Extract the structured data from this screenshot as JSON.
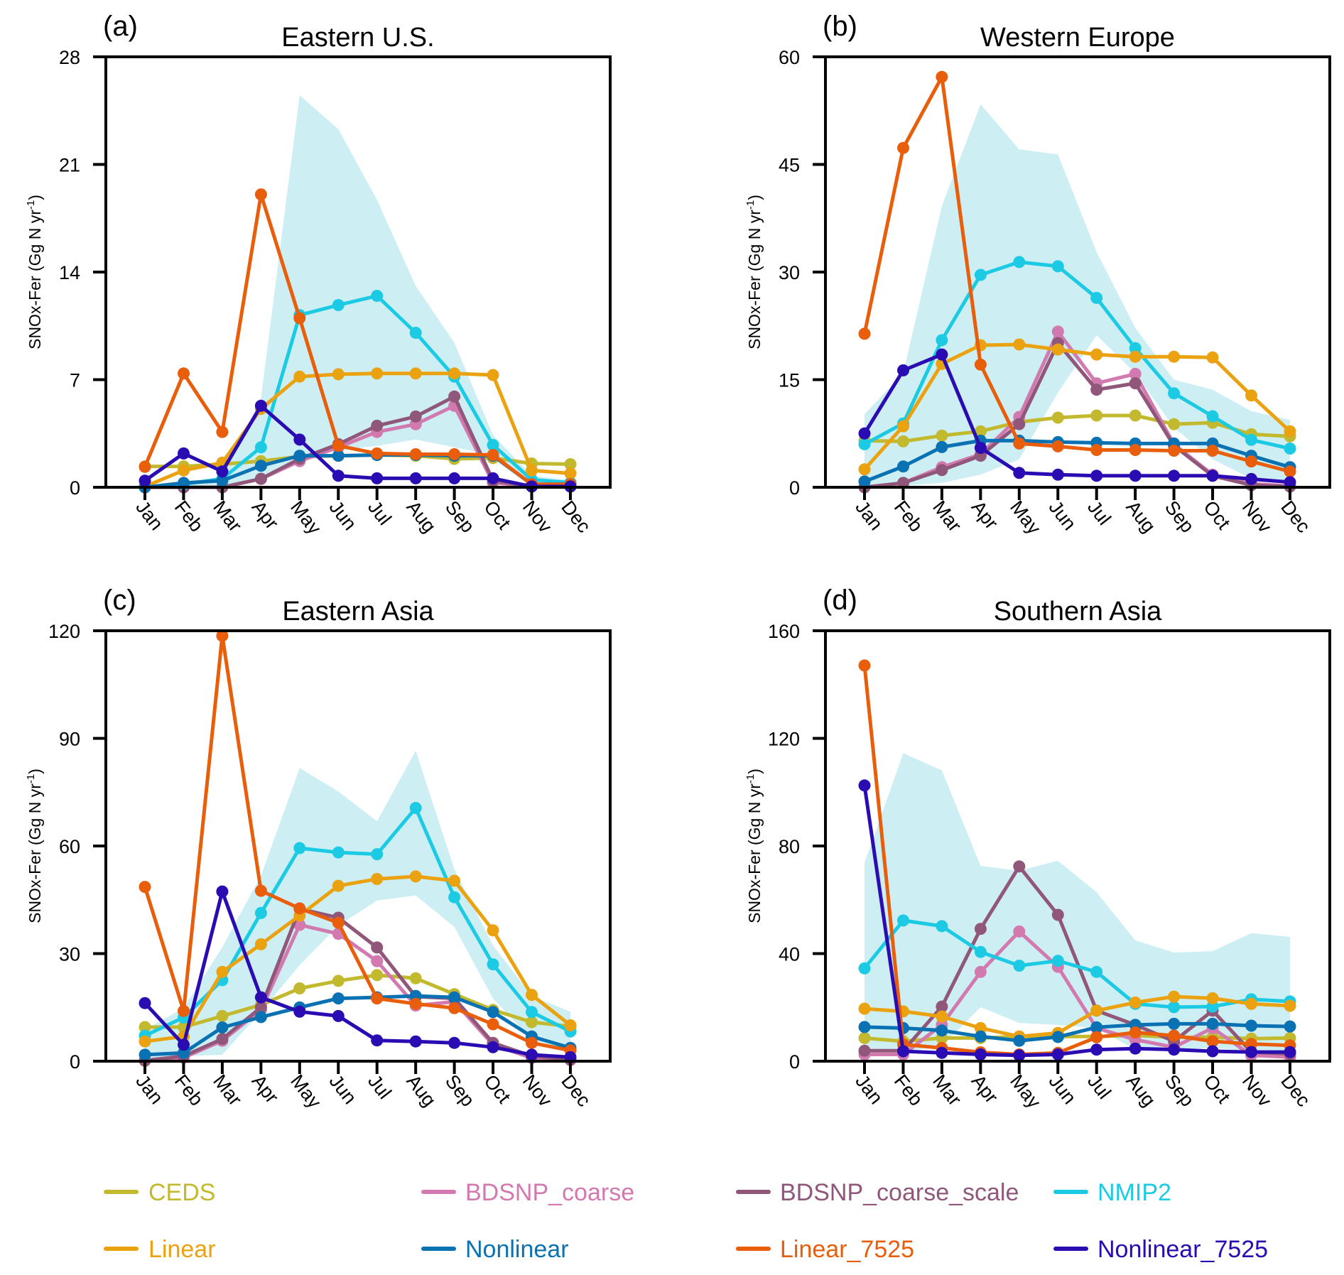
{
  "chart_data": [
    {
      "type": "line",
      "panel_label": "(a)",
      "title": "Eastern U.S.",
      "xlabel": "",
      "ylabel": "SNOx-Fer (Gg N yr",
      "ylabel_sup": "-1",
      "ylabel_end": ")",
      "ylim": [
        0,
        28
      ],
      "yticks": [
        0,
        7,
        14,
        21,
        28
      ],
      "x": [
        "Jan",
        "Feb",
        "Mar",
        "Apr",
        "May",
        "Jun",
        "Jul",
        "Aug",
        "Sep",
        "Oct",
        "Nov",
        "Dec"
      ],
      "range_band": {
        "name": "NMIP2 range",
        "upper": [
          0.05,
          0.3,
          0.7,
          5.8,
          25.5,
          23.3,
          18.7,
          13.1,
          9.4,
          3.4,
          0.75,
          0.45
        ],
        "lower": [
          0,
          0,
          0.1,
          0.4,
          1.9,
          2.4,
          2.7,
          3.1,
          2.6,
          2.1,
          0.3,
          0.2
        ]
      },
      "series": [
        {
          "name": "CEDS",
          "values": [
            1.36,
            1.36,
            1.5,
            1.7,
            2.0,
            2.05,
            2.1,
            2.05,
            1.85,
            1.9,
            1.55,
            1.5
          ]
        },
        {
          "name": "BDSNP_coarse",
          "values": [
            0,
            0,
            0,
            0.55,
            1.7,
            2.6,
            3.6,
            4.1,
            5.3,
            0.3,
            0.05,
            0.05
          ]
        },
        {
          "name": "BDSNP_coarse_scale",
          "values": [
            0,
            0,
            0,
            0.55,
            1.85,
            2.8,
            4.0,
            4.6,
            5.9,
            0.43,
            0.05,
            0.05
          ]
        },
        {
          "name": "NMIP2",
          "values": [
            0,
            0.2,
            0.55,
            2.6,
            11.2,
            11.85,
            12.45,
            10.05,
            7.2,
            2.75,
            0.5,
            0.3
          ]
        },
        {
          "name": "Linear",
          "values": [
            0.05,
            1.1,
            1.6,
            5.1,
            7.2,
            7.35,
            7.4,
            7.4,
            7.4,
            7.3,
            1.1,
            0.9
          ]
        },
        {
          "name": "Nonlinear",
          "values": [
            0,
            0.28,
            0.43,
            1.4,
            2.05,
            2.05,
            2.1,
            2.1,
            2.05,
            2.05,
            0.2,
            0.2
          ]
        },
        {
          "name": "Linear_7525",
          "values": [
            1.33,
            7.4,
            3.6,
            19.05,
            11.0,
            2.7,
            2.2,
            2.15,
            2.15,
            2.1,
            0.2,
            0.2
          ]
        },
        {
          "name": "Nonlinear_7525",
          "values": [
            0.43,
            2.2,
            1.03,
            5.3,
            3.1,
            0.75,
            0.58,
            0.58,
            0.58,
            0.58,
            0.05,
            0.05
          ]
        }
      ]
    },
    {
      "type": "line",
      "panel_label": "(b)",
      "title": "Western Europe",
      "xlabel": "",
      "ylabel": "SNOx-Fer (Gg N yr",
      "ylabel_sup": "-1",
      "ylabel_end": ")",
      "ylim": [
        0,
        60
      ],
      "yticks": [
        0,
        15,
        30,
        45,
        60
      ],
      "x": [
        "Jan",
        "Feb",
        "Mar",
        "Apr",
        "May",
        "Jun",
        "Jul",
        "Aug",
        "Sep",
        "Oct",
        "Nov",
        "Dec"
      ],
      "range_band": {
        "name": "NMIP2 range",
        "upper": [
          10.2,
          15.9,
          39.2,
          53.4,
          47.1,
          46.4,
          32.8,
          22.2,
          15.0,
          13.6,
          10.6,
          9.4
        ],
        "lower": [
          0.2,
          0.2,
          0.6,
          1.75,
          3.9,
          13.2,
          21.2,
          15.9,
          8.3,
          3.9,
          1.2,
          0.5
        ]
      },
      "series": [
        {
          "name": "CEDS",
          "values": [
            6.5,
            6.4,
            7.2,
            7.8,
            9.1,
            9.7,
            10.0,
            10.0,
            8.8,
            9.0,
            7.4,
            7.1
          ]
        },
        {
          "name": "BDSNP_coarse",
          "values": [
            0,
            0.6,
            2.8,
            4.6,
            9.8,
            21.7,
            14.5,
            15.8,
            6.0,
            1.75,
            0.5,
            0.15
          ]
        },
        {
          "name": "BDSNP_coarse_scale",
          "values": [
            0,
            0.6,
            2.4,
            4.4,
            8.8,
            20.1,
            13.6,
            14.5,
            5.8,
            1.6,
            0.3,
            0.1
          ]
        },
        {
          "name": "NMIP2",
          "values": [
            6.0,
            8.9,
            20.5,
            29.6,
            31.4,
            30.8,
            26.4,
            19.4,
            13.1,
            9.9,
            6.6,
            5.4
          ]
        },
        {
          "name": "Linear",
          "values": [
            2.5,
            8.5,
            17.2,
            19.8,
            19.9,
            19.2,
            18.5,
            18.2,
            18.2,
            18.1,
            12.8,
            7.8
          ]
        },
        {
          "name": "Nonlinear",
          "values": [
            0.8,
            2.9,
            5.6,
            6.5,
            6.5,
            6.3,
            6.2,
            6.1,
            6.1,
            6.1,
            4.4,
            2.8
          ]
        },
        {
          "name": "Linear_7525",
          "values": [
            21.4,
            47.3,
            57.2,
            17.1,
            6.1,
            5.7,
            5.2,
            5.2,
            5.1,
            5.1,
            3.6,
            2.2
          ]
        },
        {
          "name": "Nonlinear_7525",
          "values": [
            7.5,
            16.3,
            18.5,
            5.5,
            2.0,
            1.75,
            1.6,
            1.6,
            1.6,
            1.6,
            1.15,
            0.7
          ]
        }
      ]
    },
    {
      "type": "line",
      "panel_label": "(c)",
      "title": "Eastern Asia",
      "xlabel": "",
      "ylabel": "SNOx-Fer (Gg N yr",
      "ylabel_sup": "-1",
      "ylabel_end": ")",
      "ylim": [
        0,
        120
      ],
      "yticks": [
        0,
        30,
        60,
        90,
        120
      ],
      "x": [
        "Jan",
        "Feb",
        "Mar",
        "Apr",
        "May",
        "Jun",
        "Jul",
        "Aug",
        "Sep",
        "Oct",
        "Nov",
        "Dec"
      ],
      "range_band": {
        "name": "NMIP2 range",
        "upper": [
          8.8,
          14.8,
          31.8,
          51.7,
          81.7,
          75.2,
          66.9,
          86.6,
          53.5,
          32.3,
          18.2,
          13.8
        ],
        "lower": [
          0.9,
          1.4,
          1.8,
          13.8,
          26.8,
          37.8,
          44.8,
          46.2,
          37.4,
          17.5,
          6.0,
          3.2
        ]
      },
      "series": [
        {
          "name": "CEDS",
          "values": [
            9.5,
            9.5,
            12.6,
            15.7,
            20.3,
            22.4,
            24.0,
            23.1,
            18.7,
            14.3,
            10.9,
            9.7
          ]
        },
        {
          "name": "BDSNP_coarse",
          "values": [
            0.1,
            1.0,
            5.7,
            14.3,
            38.0,
            35.5,
            27.9,
            15.5,
            16.6,
            4.6,
            0.9,
            0.3
          ]
        },
        {
          "name": "BDSNP_coarse_scale",
          "values": [
            0.2,
            1.4,
            6.2,
            15.0,
            42.5,
            40.0,
            31.7,
            18.0,
            17.5,
            5.1,
            1.4,
            0.5
          ]
        },
        {
          "name": "NMIP2",
          "values": [
            7.1,
            12.2,
            22.6,
            41.3,
            59.4,
            58.2,
            57.7,
            70.6,
            45.7,
            27.0,
            13.7,
            8.3
          ]
        },
        {
          "name": "Linear",
          "values": [
            5.5,
            6.9,
            24.9,
            32.6,
            40.6,
            48.9,
            50.8,
            51.5,
            50.3,
            36.5,
            18.5,
            10.0
          ]
        },
        {
          "name": "Nonlinear",
          "values": [
            1.8,
            2.3,
            9.4,
            12.3,
            15.0,
            17.5,
            17.8,
            18.2,
            17.8,
            13.7,
            6.9,
            3.7
          ]
        },
        {
          "name": "Linear_7525",
          "values": [
            48.6,
            14.0,
            118.6,
            47.5,
            42.6,
            38.6,
            17.5,
            16.0,
            14.8,
            10.3,
            5.1,
            3.0
          ]
        },
        {
          "name": "Nonlinear_7525",
          "values": [
            16.2,
            4.6,
            47.3,
            17.8,
            13.8,
            12.6,
            5.8,
            5.5,
            5.1,
            3.9,
            1.8,
            1.1
          ]
        }
      ]
    },
    {
      "type": "line",
      "panel_label": "(d)",
      "title": "Southern Asia",
      "xlabel": "",
      "ylabel": "SNOx-Fer (Gg N yr",
      "ylabel_sup": "-1",
      "ylabel_end": ")",
      "ylim": [
        0,
        160
      ],
      "yticks": [
        0,
        40,
        80,
        120,
        160
      ],
      "x": [
        "Jan",
        "Feb",
        "Mar",
        "Apr",
        "May",
        "Jun",
        "Jul",
        "Aug",
        "Sep",
        "Oct",
        "Nov",
        "Dec"
      ],
      "range_band": {
        "name": "NMIP2 range",
        "upper": [
          73.8,
          114.5,
          108.1,
          72.6,
          70.8,
          74.5,
          62.8,
          44.9,
          40.4,
          40.9,
          47.6,
          46.2
        ],
        "lower": [
          3.7,
          3.7,
          5.5,
          20.1,
          14.2,
          13.5,
          12.3,
          4.3,
          4.3,
          4.9,
          3.7,
          3.1
        ]
      },
      "series": [
        {
          "name": "CEDS",
          "values": [
            8.6,
            7.4,
            8.6,
            8.6,
            9.2,
            9.2,
            9.2,
            9.6,
            8.9,
            8.9,
            8.4,
            8.6
          ]
        },
        {
          "name": "BDSNP_coarse",
          "values": [
            2.5,
            2.5,
            13.5,
            33.2,
            48.2,
            35.1,
            12.3,
            8.0,
            5.2,
            12.3,
            2.2,
            1.5
          ]
        },
        {
          "name": "BDSNP_coarse_scale",
          "values": [
            3.9,
            3.9,
            20.3,
            49.2,
            72.4,
            54.4,
            18.8,
            13.5,
            7.4,
            18.8,
            3.4,
            2.7
          ]
        },
        {
          "name": "NMIP2",
          "values": [
            34.5,
            52.3,
            50.2,
            40.6,
            35.5,
            37.3,
            33.2,
            21.3,
            20.1,
            20.3,
            23.0,
            22.2
          ]
        },
        {
          "name": "Linear",
          "values": [
            19.5,
            18.5,
            16.6,
            12.3,
            9.2,
            10.5,
            18.8,
            21.8,
            24.0,
            23.4,
            21.3,
            20.6
          ]
        },
        {
          "name": "Nonlinear",
          "values": [
            12.7,
            12.3,
            11.4,
            9.2,
            7.6,
            9.0,
            12.6,
            13.5,
            13.9,
            13.9,
            13.2,
            12.9
          ]
        },
        {
          "name": "Linear_7525",
          "values": [
            147.1,
            6.2,
            4.9,
            3.3,
            2.5,
            3.1,
            8.9,
            10.7,
            9.5,
            7.4,
            6.4,
            5.9
          ]
        },
        {
          "name": "Nonlinear_7525",
          "values": [
            102.5,
            3.7,
            3.1,
            2.5,
            2.2,
            2.5,
            4.3,
            4.7,
            4.3,
            3.7,
            3.4,
            3.4
          ]
        }
      ]
    }
  ],
  "legend": {
    "placement": "bottom",
    "items": [
      {
        "name": "CEDS",
        "color": "#c3b92f"
      },
      {
        "name": "BDSNP_coarse",
        "color": "#d27ab0"
      },
      {
        "name": "BDSNP_coarse_scale",
        "color": "#91577a"
      },
      {
        "name": "NMIP2",
        "color": "#1ccbe3"
      },
      {
        "name": "Linear",
        "color": "#eba210"
      },
      {
        "name": "Nonlinear",
        "color": "#0a71b3"
      },
      {
        "name": "Linear_7525",
        "color": "#e85e0b"
      },
      {
        "name": "Nonlinear_7525",
        "color": "#2a0cb2"
      }
    ]
  },
  "colors": {
    "range_band": "#cdeff4",
    "axis": "#000000"
  }
}
